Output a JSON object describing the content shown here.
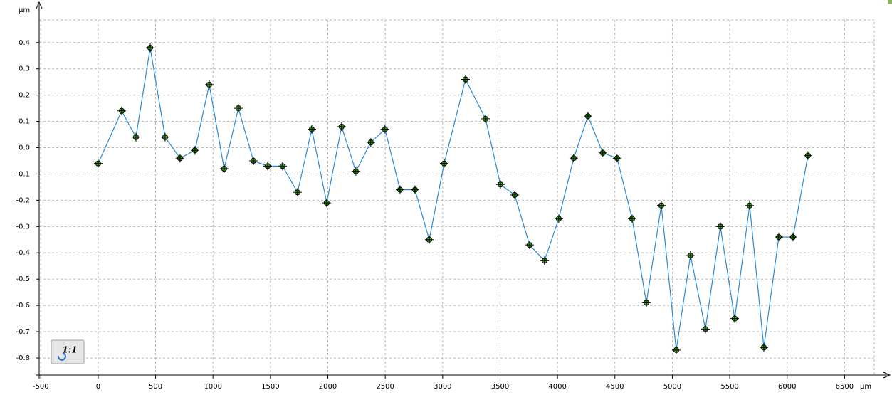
{
  "chart_data": {
    "type": "line",
    "y_label": "µm",
    "x_label": "µm",
    "x": [
      0,
      205,
      329,
      453,
      583,
      713,
      843,
      967,
      1097,
      1221,
      1352,
      1476,
      1606,
      1736,
      1860,
      1990,
      2120,
      2244,
      2374,
      2498,
      2629,
      2759,
      2883,
      3013,
      3199,
      3373,
      3503,
      3627,
      3757,
      3887,
      4011,
      4141,
      4265,
      4395,
      4519,
      4650,
      4774,
      4904,
      5034,
      5158,
      5288,
      5418,
      5543,
      5673,
      5797,
      5927,
      6051,
      6181
    ],
    "series": [
      {
        "color": "#2a8ad8",
        "marker_color": "#3c9a1c",
        "values": [
          -0.06,
          0.14,
          0.04,
          0.38,
          0.04,
          -0.04,
          -0.01,
          0.24,
          -0.08,
          0.15,
          -0.05,
          -0.07,
          -0.07,
          -0.17,
          0.07,
          -0.21,
          0.08,
          -0.09,
          0.02,
          0.07,
          -0.16,
          -0.16,
          -0.35,
          -0.06,
          0.26,
          0.11,
          -0.14,
          -0.18,
          -0.37,
          -0.43,
          -0.27,
          -0.04,
          0.12,
          -0.02,
          -0.04,
          -0.27,
          -0.59,
          -0.22,
          -0.77,
          -0.41,
          -0.69,
          -0.3,
          -0.65,
          -0.22,
          -0.76,
          -0.34,
          -0.34,
          -0.03
        ]
      }
    ],
    "xlim": [
      -514,
      6758
    ],
    "ylim": [
      -0.865,
      0.486
    ],
    "xticks": [
      -500,
      0,
      500,
      1000,
      1500,
      2000,
      2500,
      3000,
      3500,
      4000,
      4500,
      5000,
      5500,
      6000,
      6500
    ],
    "yticks": [
      -0.8,
      -0.7,
      -0.6,
      -0.5,
      -0.4,
      -0.3,
      -0.2,
      -0.1,
      {
        "value": 0,
        "label": "0.0"
      },
      0.1,
      0.2,
      0.3,
      0.4
    ],
    "grid": true
  },
  "toolbar": {
    "zoom_button": "1:1"
  }
}
